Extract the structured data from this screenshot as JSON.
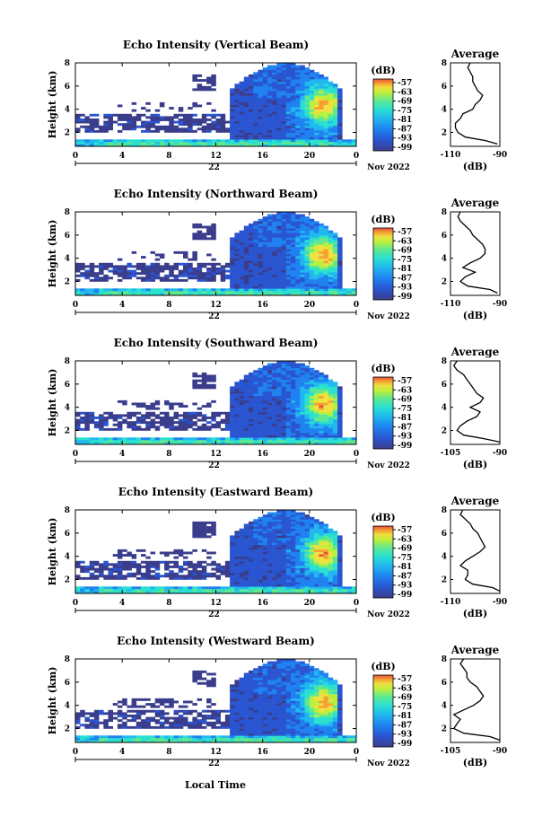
{
  "xaxis_label": "Local Time",
  "xticks": [
    "0",
    "4",
    "8",
    "12",
    "16",
    "20",
    "0"
  ],
  "day_label": "22",
  "month_label": "Nov 2022",
  "ylabel": "Height (km)",
  "yticks": [
    "2",
    "4",
    "6",
    "8"
  ],
  "colorbar": {
    "unit": "(dB)",
    "ticks": [
      "-57",
      "-63",
      "-69",
      "-75",
      "-81",
      "-87",
      "-93",
      "-99"
    ],
    "colors": [
      "#3a3d8c",
      "#2a55d0",
      "#1f82f0",
      "#21b8f0",
      "#2ae0d0",
      "#5fe890",
      "#b8f040",
      "#f0e040",
      "#f5a030",
      "#e85040"
    ]
  },
  "panels": [
    {
      "title": "Echo Intensity (Vertical Beam)",
      "avg_title": "Average",
      "avg_xticks": [
        "-110",
        "-90"
      ],
      "avg_xlabel": "(dB)",
      "avg_xlim": [
        -110,
        -90
      ],
      "month_label": "Nov 2022"
    },
    {
      "title": "Echo Intensity (Northward Beam)",
      "avg_title": "Average",
      "avg_xticks": [
        "-110",
        "-90"
      ],
      "avg_xlabel": "(dB)",
      "avg_xlim": [
        -110,
        -90
      ],
      "month_label": "Nov 2022"
    },
    {
      "title": "Echo Intensity (Southward Beam)",
      "avg_title": "Average",
      "avg_xticks": [
        "-105",
        "-90"
      ],
      "avg_xlabel": "(dB)",
      "avg_xlim": [
        -105,
        -90
      ],
      "month_label": "Nov 2022"
    },
    {
      "title": "Echo Intensity (Eastward Beam)",
      "avg_title": "Average",
      "avg_xticks": [
        "-110",
        "-90"
      ],
      "avg_xlabel": "(dB)",
      "avg_xlim": [
        -110,
        -90
      ],
      "month_label": "Nov 2022"
    },
    {
      "title": "Echo Intensity (Westward Beam)",
      "avg_title": "Average",
      "avg_xticks": [
        "-105",
        "-90"
      ],
      "avg_xlabel": "(dB)",
      "avg_xlim": [
        -105,
        -90
      ],
      "month_label": "Nov 2022"
    }
  ],
  "chart_data": [
    {
      "type": "heatmap",
      "title": "Echo Intensity (Vertical Beam)",
      "xlabel": "",
      "ylabel": "Height (km)",
      "xlim": [
        0,
        24
      ],
      "ylim": [
        0.8,
        8
      ],
      "colorbar_range": [
        -99,
        -57
      ],
      "profile": {
        "height": [
          1.0,
          1.3,
          1.6,
          2.0,
          2.4,
          2.8,
          3.2,
          3.6,
          4.0,
          4.4,
          4.8,
          5.2,
          5.6,
          6.0,
          6.4,
          6.8,
          7.2,
          7.6,
          8.0
        ],
        "db": [
          -91,
          -96,
          -104,
          -107,
          -108,
          -108,
          -106,
          -105,
          -101,
          -100,
          -98,
          -97,
          -99,
          -100,
          -101,
          -101,
          -102,
          -103,
          -102
        ]
      }
    },
    {
      "type": "heatmap",
      "title": "Echo Intensity (Northward Beam)",
      "xlabel": "",
      "ylabel": "Height (km)",
      "xlim": [
        0,
        24
      ],
      "ylim": [
        0.8,
        8
      ],
      "colorbar_range": [
        -99,
        -57
      ],
      "profile": {
        "height": [
          1.0,
          1.3,
          1.6,
          2.0,
          2.4,
          2.8,
          3.2,
          3.6,
          4.0,
          4.4,
          4.8,
          5.2,
          5.6,
          6.0,
          6.4,
          6.8,
          7.2,
          7.6,
          8.0
        ],
        "db": [
          -91,
          -94,
          -103,
          -106,
          -104,
          -100,
          -105,
          -102,
          -98,
          -96,
          -96,
          -97,
          -99,
          -101,
          -102,
          -104,
          -106,
          -107,
          -106
        ]
      }
    },
    {
      "type": "heatmap",
      "title": "Echo Intensity (Southward Beam)",
      "xlabel": "",
      "ylabel": "Height (km)",
      "xlim": [
        0,
        24
      ],
      "ylim": [
        0.8,
        8
      ],
      "colorbar_range": [
        -99,
        -57
      ],
      "profile": {
        "height": [
          1.0,
          1.3,
          1.6,
          2.0,
          2.4,
          2.8,
          3.2,
          3.6,
          4.0,
          4.4,
          4.8,
          5.2,
          5.6,
          6.0,
          6.4,
          6.8,
          7.2,
          7.6,
          8.0
        ],
        "db": [
          -90,
          -95,
          -101,
          -103,
          -102,
          -100,
          -97,
          -96,
          -99,
          -96,
          -95,
          -97,
          -98,
          -99,
          -100,
          -101,
          -103,
          -104,
          -103
        ]
      }
    },
    {
      "type": "heatmap",
      "title": "Echo Intensity (Eastward Beam)",
      "xlabel": "",
      "ylabel": "Height (km)",
      "xlim": [
        0,
        24
      ],
      "ylim": [
        0.8,
        8
      ],
      "colorbar_range": [
        -99,
        -57
      ],
      "profile": {
        "height": [
          1.0,
          1.3,
          1.6,
          2.0,
          2.4,
          2.8,
          3.2,
          3.6,
          4.0,
          4.4,
          4.8,
          5.2,
          5.6,
          6.0,
          6.4,
          6.8,
          7.2,
          7.6,
          8.0
        ],
        "db": [
          -90,
          -93,
          -101,
          -104,
          -103,
          -103,
          -106,
          -104,
          -101,
          -98,
          -96,
          -97,
          -98,
          -99,
          -101,
          -102,
          -104,
          -106,
          -105
        ]
      }
    },
    {
      "type": "heatmap",
      "title": "Echo Intensity (Westward Beam)",
      "xlabel": "Local Time",
      "ylabel": "Height (km)",
      "xlim": [
        0,
        24
      ],
      "ylim": [
        0.8,
        8
      ],
      "colorbar_range": [
        -99,
        -57
      ],
      "profile": {
        "height": [
          1.0,
          1.3,
          1.6,
          2.0,
          2.4,
          2.8,
          3.2,
          3.6,
          4.0,
          4.4,
          4.8,
          5.2,
          5.6,
          6.0,
          6.4,
          6.8,
          7.2,
          7.6,
          8.0
        ],
        "db": [
          -90,
          -93,
          -101,
          -104,
          -103,
          -102,
          -104,
          -101,
          -98,
          -96,
          -95,
          -96,
          -97,
          -99,
          -100,
          -100,
          -101,
          -102,
          -101
        ]
      }
    }
  ]
}
